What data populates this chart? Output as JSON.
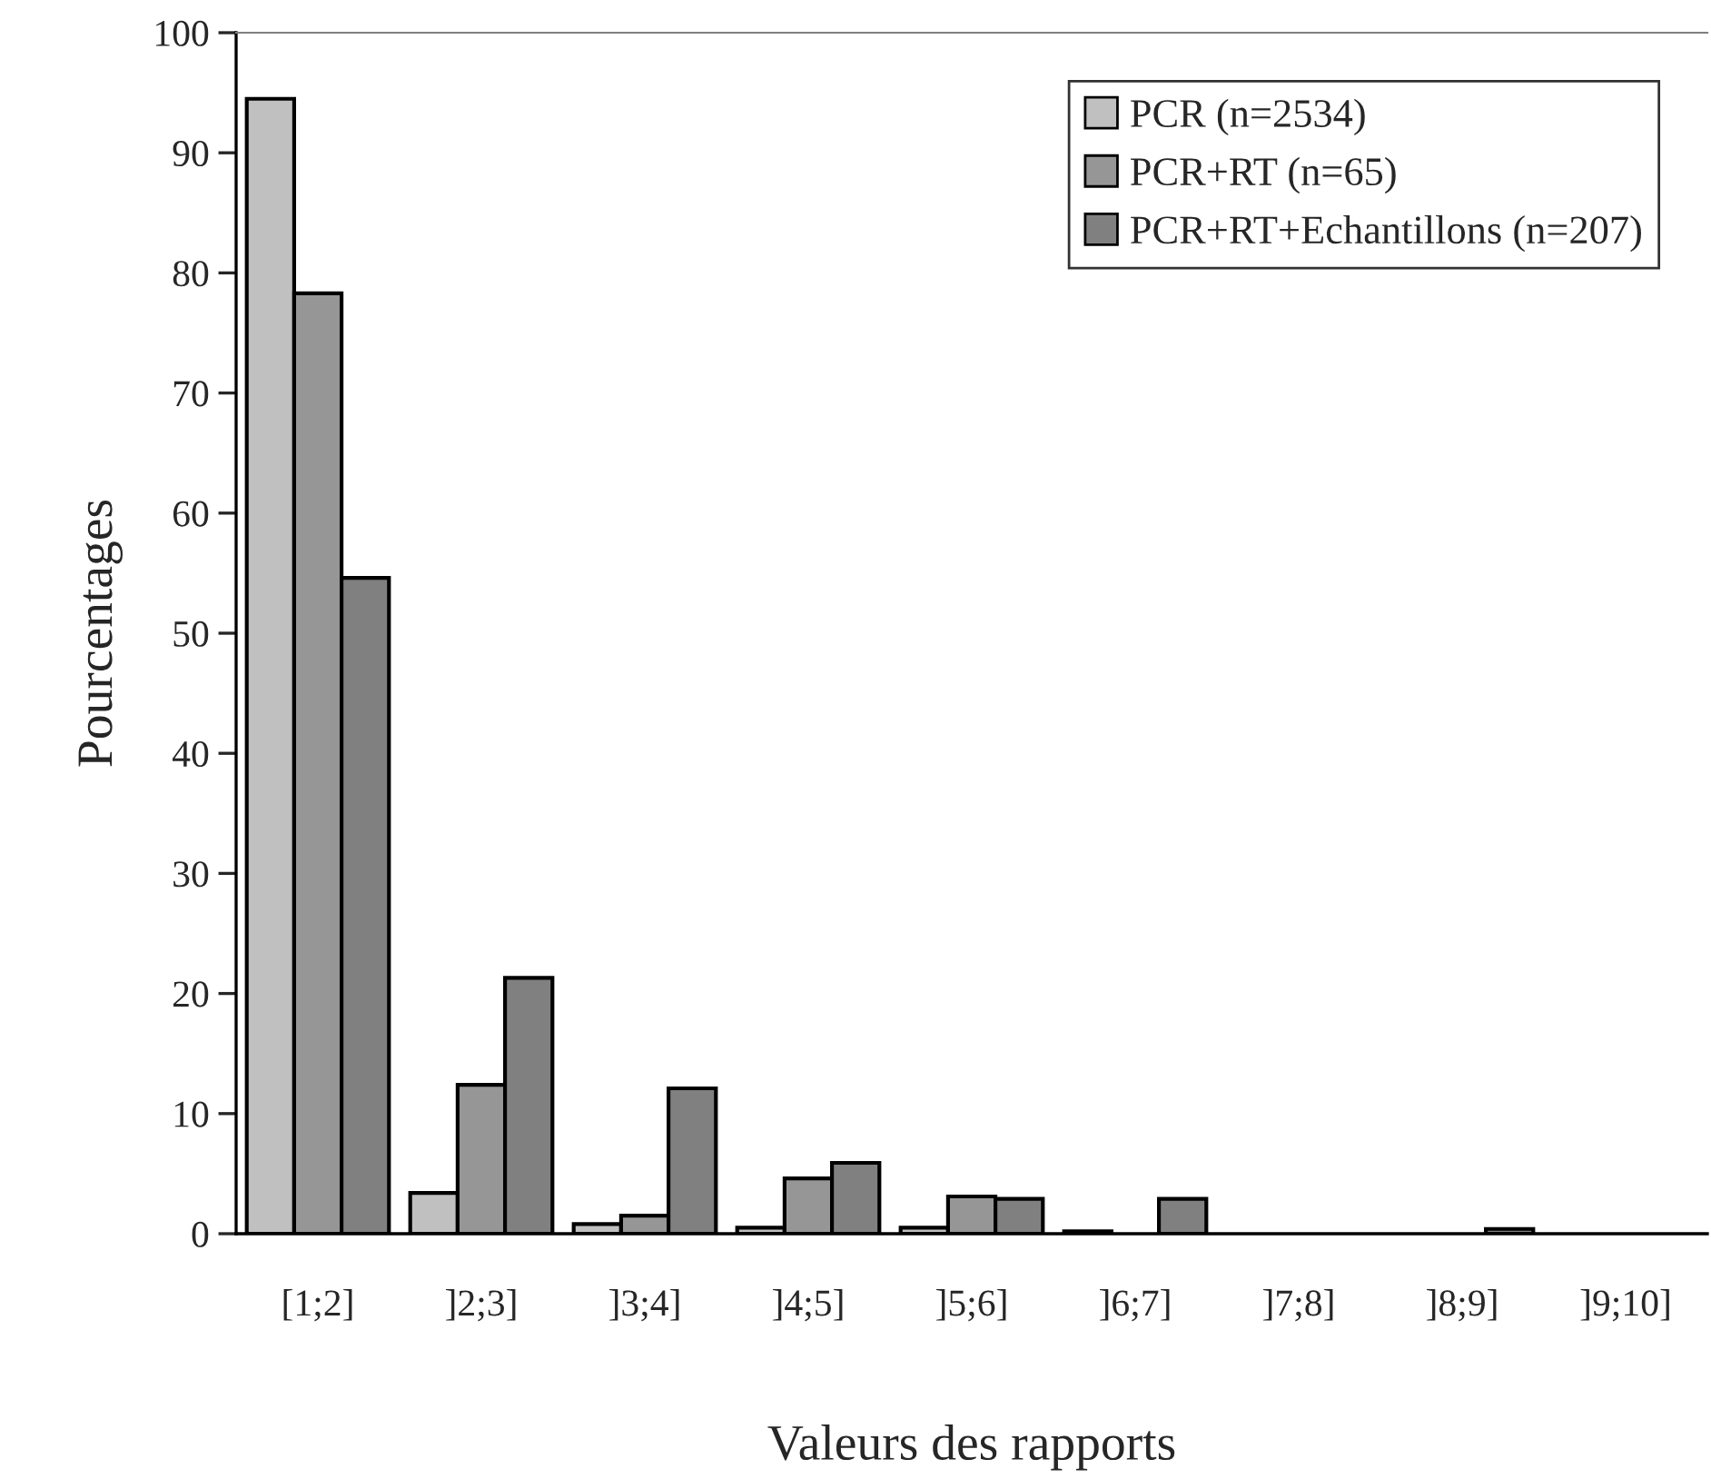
{
  "chart_data": {
    "type": "bar",
    "xlabel": "Valeurs des rapports",
    "ylabel": "Pourcentages",
    "categories": [
      "[1;2]",
      "]2;3]",
      "]3;4]",
      "]4;5]",
      "]5;6]",
      "]6;7]",
      "]7;8]",
      "]8;9]",
      "]9;10]"
    ],
    "series": [
      {
        "name": "PCR (n=2534)",
        "color": "#c0c0c0",
        "values": [
          94.5,
          3.4,
          0.8,
          0.5,
          0.5,
          0.2,
          0,
          0,
          0
        ]
      },
      {
        "name": "PCR+RT (n=65)",
        "color": "#969696",
        "values": [
          78.3,
          12.4,
          1.5,
          4.6,
          3.1,
          0,
          0,
          0,
          0
        ]
      },
      {
        "name": "PCR+RT+Echantillons (n=207)",
        "color": "#808080",
        "values": [
          54.6,
          21.3,
          12.1,
          5.9,
          2.9,
          2.9,
          0,
          0.4,
          0
        ]
      }
    ],
    "ylim": [
      0,
      100
    ],
    "yticks": [
      0,
      10,
      20,
      30,
      40,
      50,
      60,
      70,
      80,
      90,
      100
    ],
    "grid": false,
    "legend": "top right"
  }
}
